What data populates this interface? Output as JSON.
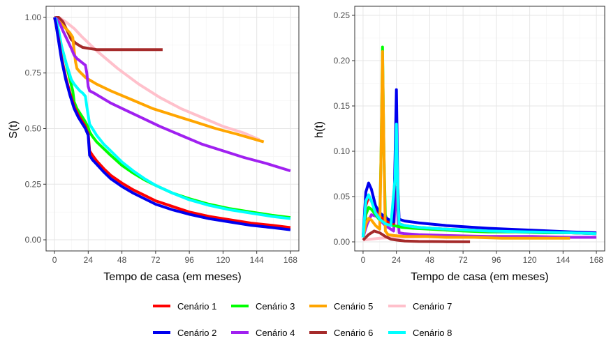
{
  "chart_data": [
    {
      "type": "line",
      "xlabel": "Tempo de casa (em meses)",
      "ylabel": "S(t)",
      "xlim": [
        -6,
        174
      ],
      "ylim": [
        -0.05,
        1.05
      ],
      "xticks": [
        0,
        24,
        48,
        72,
        96,
        120,
        144,
        168
      ],
      "yticks": [
        0.0,
        0.25,
        0.5,
        0.75,
        1.0
      ],
      "ytick_labels": [
        "0.00",
        "0.25",
        "0.50",
        "0.75",
        "1.00"
      ],
      "grid": true,
      "series": [
        {
          "name": "Cenário 7",
          "x": [
            0,
            3,
            8,
            14,
            20,
            30,
            45,
            60,
            75,
            90,
            105,
            120,
            135,
            146
          ],
          "y": [
            1.0,
            1.0,
            0.98,
            0.95,
            0.91,
            0.85,
            0.77,
            0.7,
            0.64,
            0.59,
            0.55,
            0.51,
            0.48,
            0.45
          ]
        },
        {
          "name": "Cenário 6",
          "x": [
            0,
            3,
            6,
            9,
            12,
            16,
            20,
            25,
            30,
            40,
            50,
            60,
            70,
            77
          ],
          "y": [
            1.0,
            1.0,
            0.98,
            0.94,
            0.9,
            0.88,
            0.865,
            0.86,
            0.855,
            0.855,
            0.855,
            0.855,
            0.855,
            0.855
          ]
        },
        {
          "name": "Cenário 5",
          "x": [
            0,
            2,
            5,
            8,
            11,
            13,
            14,
            15,
            16,
            18,
            22,
            30,
            40,
            55,
            70,
            85,
            100,
            115,
            130,
            149
          ],
          "y": [
            1.0,
            0.99,
            0.97,
            0.95,
            0.93,
            0.91,
            0.85,
            0.8,
            0.77,
            0.755,
            0.73,
            0.7,
            0.67,
            0.63,
            0.59,
            0.56,
            0.53,
            0.5,
            0.475,
            0.44
          ]
        },
        {
          "name": "Cenário 4",
          "x": [
            0,
            2,
            4,
            6,
            9,
            12,
            14,
            16,
            18,
            20,
            22,
            23,
            24,
            25,
            28,
            32,
            40,
            50,
            60,
            75,
            90,
            105,
            120,
            135,
            150,
            168
          ],
          "y": [
            1.0,
            0.99,
            0.97,
            0.94,
            0.9,
            0.86,
            0.83,
            0.815,
            0.805,
            0.795,
            0.785,
            0.75,
            0.69,
            0.67,
            0.66,
            0.645,
            0.615,
            0.585,
            0.555,
            0.51,
            0.47,
            0.43,
            0.4,
            0.37,
            0.345,
            0.31
          ]
        },
        {
          "name": "Cenário 3",
          "x": [
            0,
            1,
            3,
            5,
            8,
            11,
            13,
            14,
            15,
            16,
            18,
            20,
            22,
            24,
            25,
            27,
            30,
            35,
            40,
            48,
            56,
            64,
            72,
            84,
            96,
            110,
            125,
            140,
            155,
            168
          ],
          "y": [
            1.0,
            0.98,
            0.93,
            0.87,
            0.8,
            0.72,
            0.67,
            0.62,
            0.605,
            0.59,
            0.57,
            0.55,
            0.53,
            0.505,
            0.485,
            0.465,
            0.44,
            0.41,
            0.38,
            0.335,
            0.3,
            0.27,
            0.245,
            0.21,
            0.185,
            0.16,
            0.14,
            0.125,
            0.11,
            0.1
          ]
        },
        {
          "name": "Cenário 8",
          "x": [
            0,
            1,
            3,
            5,
            8,
            10,
            12,
            14,
            16,
            18,
            20,
            22,
            23,
            24,
            25,
            27,
            30,
            35,
            40,
            48,
            56,
            64,
            72,
            84,
            96,
            110,
            125,
            140,
            155,
            168
          ],
          "y": [
            1.0,
            0.99,
            0.94,
            0.87,
            0.8,
            0.76,
            0.72,
            0.7,
            0.685,
            0.67,
            0.66,
            0.645,
            0.6,
            0.56,
            0.52,
            0.5,
            0.47,
            0.43,
            0.4,
            0.35,
            0.31,
            0.275,
            0.245,
            0.21,
            0.18,
            0.155,
            0.135,
            0.12,
            0.105,
            0.095
          ]
        },
        {
          "name": "Cenário 1",
          "x": [
            0,
            1,
            3,
            5,
            8,
            11,
            14,
            17,
            20,
            22,
            23,
            24,
            25,
            27,
            30,
            35,
            40,
            48,
            56,
            64,
            72,
            84,
            96,
            110,
            125,
            140,
            155,
            168
          ],
          "y": [
            1.0,
            0.97,
            0.9,
            0.82,
            0.73,
            0.66,
            0.6,
            0.56,
            0.53,
            0.51,
            0.49,
            0.48,
            0.4,
            0.38,
            0.355,
            0.32,
            0.29,
            0.255,
            0.225,
            0.2,
            0.175,
            0.15,
            0.125,
            0.105,
            0.09,
            0.075,
            0.065,
            0.055
          ]
        },
        {
          "name": "Cenário 2",
          "x": [
            0,
            1,
            3,
            5,
            8,
            11,
            14,
            17,
            20,
            22,
            23,
            24,
            25,
            27,
            30,
            35,
            40,
            48,
            56,
            64,
            72,
            84,
            96,
            110,
            125,
            140,
            155,
            168
          ],
          "y": [
            1.0,
            0.97,
            0.89,
            0.81,
            0.72,
            0.65,
            0.59,
            0.55,
            0.52,
            0.5,
            0.485,
            0.47,
            0.38,
            0.36,
            0.34,
            0.305,
            0.275,
            0.24,
            0.21,
            0.185,
            0.16,
            0.135,
            0.115,
            0.095,
            0.08,
            0.065,
            0.055,
            0.045
          ]
        }
      ]
    },
    {
      "type": "line",
      "xlabel": "Tempo de casa (em meses)",
      "ylabel": "h(t)",
      "xlim": [
        -6,
        174
      ],
      "ylim": [
        -0.01,
        0.26
      ],
      "xticks": [
        0,
        24,
        48,
        72,
        96,
        120,
        144,
        168
      ],
      "yticks": [
        0.0,
        0.05,
        0.1,
        0.15,
        0.2,
        0.25
      ],
      "ytick_labels": [
        "0.00",
        "0.05",
        "0.10",
        "0.15",
        "0.20",
        "0.25"
      ],
      "grid": true,
      "series": [
        {
          "name": "Cenário 7",
          "x": [
            0,
            12,
            24,
            48,
            72,
            96,
            120,
            146
          ],
          "y": [
            0.002,
            0.004,
            0.005,
            0.006,
            0.006,
            0.006,
            0.005,
            0.005
          ]
        },
        {
          "name": "Cenário 6",
          "x": [
            0,
            4,
            8,
            12,
            16,
            20,
            24,
            30,
            40,
            60,
            77
          ],
          "y": [
            0.002,
            0.008,
            0.012,
            0.01,
            0.006,
            0.003,
            0.002,
            0.001,
            0.0005,
            0.0002,
            0.0001
          ]
        },
        {
          "name": "Cenário 4",
          "x": [
            0,
            3,
            6,
            10,
            16,
            22,
            23,
            24,
            25,
            26,
            30,
            40,
            60,
            90,
            120,
            150,
            168
          ],
          "y": [
            0.005,
            0.02,
            0.03,
            0.028,
            0.018,
            0.012,
            0.04,
            0.06,
            0.03,
            0.01,
            0.009,
            0.008,
            0.007,
            0.006,
            0.006,
            0.005,
            0.005
          ]
        },
        {
          "name": "Cenário 3",
          "x": [
            0,
            2,
            4,
            6,
            9,
            12,
            13,
            14,
            15,
            16,
            18,
            22,
            28,
            36,
            48,
            60,
            72,
            90,
            110,
            130,
            150,
            168
          ],
          "y": [
            0.005,
            0.03,
            0.038,
            0.036,
            0.03,
            0.024,
            0.1,
            0.215,
            0.1,
            0.03,
            0.02,
            0.018,
            0.016,
            0.015,
            0.014,
            0.013,
            0.012,
            0.011,
            0.011,
            0.01,
            0.01,
            0.009
          ]
        },
        {
          "name": "Cenário 1",
          "x": [
            0,
            2,
            4,
            6,
            9,
            12,
            18,
            22,
            23,
            24,
            25,
            26,
            30,
            40,
            60,
            90,
            120,
            150,
            168
          ],
          "y": [
            0.005,
            0.04,
            0.05,
            0.045,
            0.035,
            0.028,
            0.022,
            0.02,
            0.08,
            0.15,
            0.05,
            0.02,
            0.018,
            0.016,
            0.014,
            0.012,
            0.011,
            0.01,
            0.009
          ]
        },
        {
          "name": "Cenário 2",
          "x": [
            0,
            2,
            4,
            6,
            9,
            12,
            18,
            22,
            23,
            24,
            25,
            26,
            30,
            40,
            60,
            90,
            120,
            150,
            168
          ],
          "y": [
            0.005,
            0.055,
            0.065,
            0.058,
            0.04,
            0.032,
            0.025,
            0.022,
            0.09,
            0.168,
            0.06,
            0.025,
            0.023,
            0.021,
            0.018,
            0.015,
            0.013,
            0.011,
            0.01
          ]
        },
        {
          "name": "Cenário 5",
          "x": [
            0,
            2,
            4,
            6,
            9,
            12,
            13,
            14,
            15,
            16,
            18,
            22,
            30,
            45,
            60,
            80,
            100,
            120,
            149
          ],
          "y": [
            0.005,
            0.02,
            0.026,
            0.024,
            0.018,
            0.014,
            0.1,
            0.21,
            0.1,
            0.012,
            0.008,
            0.007,
            0.006,
            0.006,
            0.005,
            0.005,
            0.004,
            0.004,
            0.004
          ]
        },
        {
          "name": "Cenário 8",
          "x": [
            0,
            2,
            4,
            6,
            9,
            12,
            16,
            20,
            23,
            24,
            25,
            26,
            30,
            40,
            60,
            90,
            120,
            150,
            168
          ],
          "y": [
            0.005,
            0.045,
            0.052,
            0.045,
            0.032,
            0.025,
            0.02,
            0.018,
            0.07,
            0.13,
            0.05,
            0.02,
            0.018,
            0.016,
            0.014,
            0.012,
            0.011,
            0.01,
            0.009
          ]
        }
      ]
    }
  ],
  "legend": [
    {
      "label": "Cenário 1",
      "color": "#ff0000"
    },
    {
      "label": "Cenário 3",
      "color": "#00ff00"
    },
    {
      "label": "Cenário 5",
      "color": "#ffa500"
    },
    {
      "label": "Cenário 7",
      "color": "#ffc0cb"
    },
    {
      "label": "Cenário 2",
      "color": "#0000ee"
    },
    {
      "label": "Cenário 4",
      "color": "#a020f0"
    },
    {
      "label": "Cenário 6",
      "color": "#a52a2a"
    },
    {
      "label": "Cenário 8",
      "color": "#00ffff"
    }
  ],
  "series_colors": {
    "Cenário 1": "#ff0000",
    "Cenário 2": "#0000ee",
    "Cenário 3": "#00ff00",
    "Cenário 4": "#a020f0",
    "Cenário 5": "#ffa500",
    "Cenário 6": "#a52a2a",
    "Cenário 7": "#ffc0cb",
    "Cenário 8": "#00ffff"
  }
}
